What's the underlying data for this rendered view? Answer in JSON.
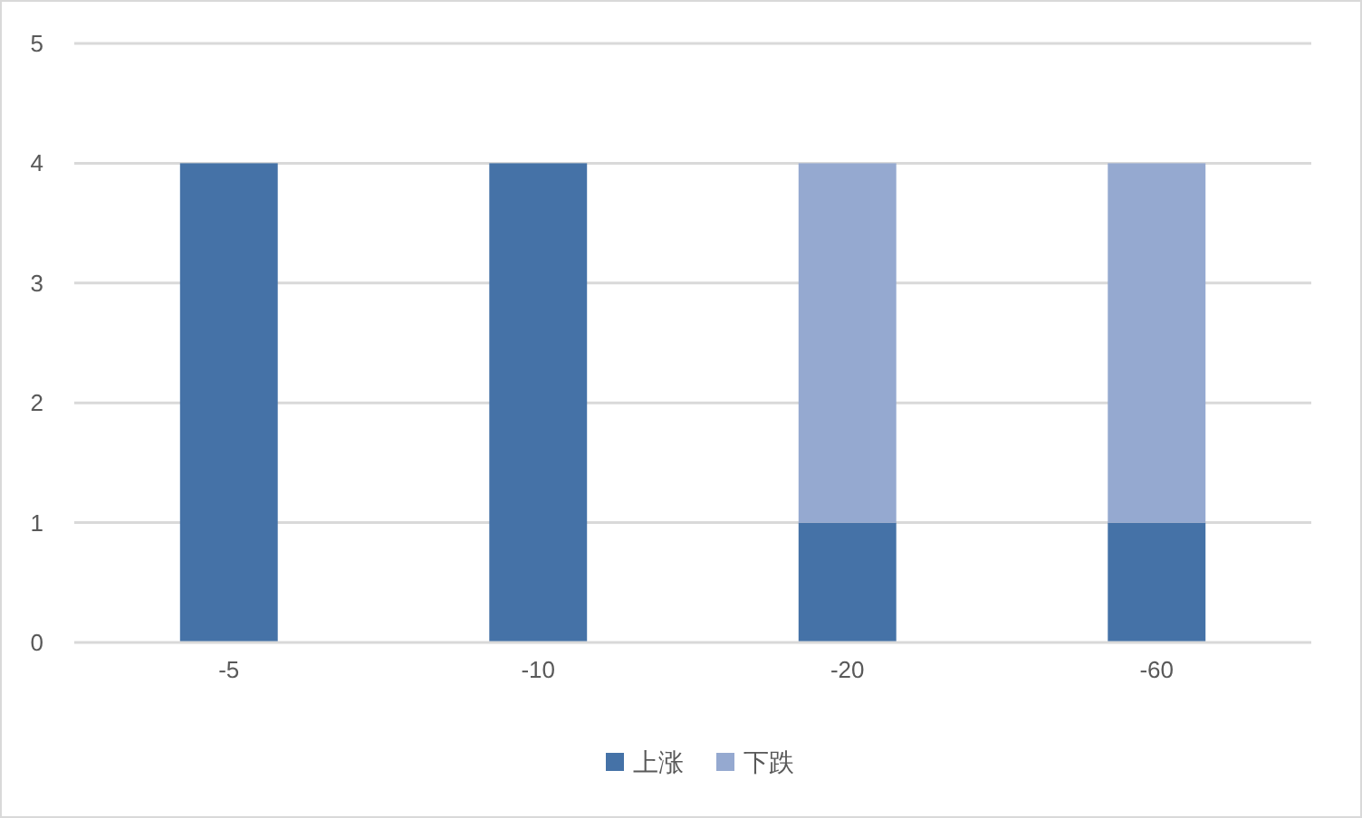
{
  "chart_data": {
    "type": "bar",
    "stacked": true,
    "categories": [
      "-5",
      "-10",
      "-20",
      "-60"
    ],
    "series": [
      {
        "name": "上涨",
        "color": "#4572a7",
        "values": [
          4,
          4,
          1,
          1
        ]
      },
      {
        "name": "下跌",
        "color": "#95a9d0",
        "values": [
          0,
          0,
          3,
          3
        ]
      }
    ],
    "ylim": [
      0,
      5
    ],
    "yticks": [
      0,
      1,
      2,
      3,
      4,
      5
    ],
    "grid": "y",
    "legend": "bottom"
  }
}
